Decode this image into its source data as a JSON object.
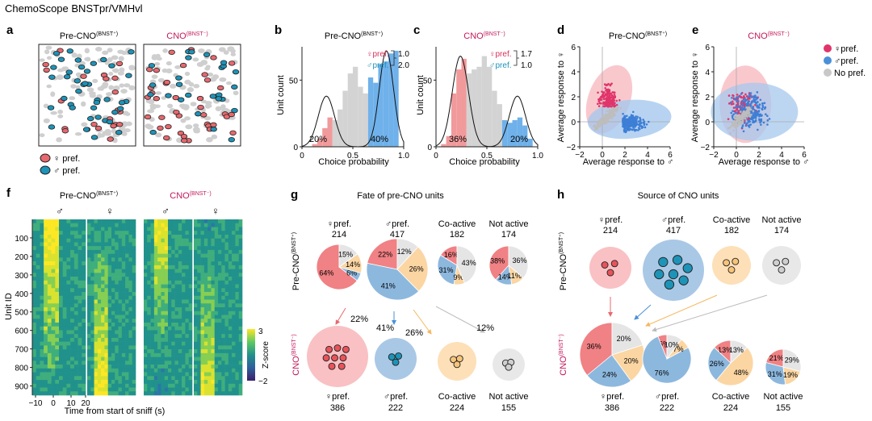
{
  "header": {
    "title": "ChemoScope BNSTpr/VMHvl"
  },
  "colors": {
    "female": "#e8686e",
    "female_dark": "#d8315b",
    "male": "#1d93b8",
    "male_blue": "#4a90d9",
    "gray": "#c8c8c8",
    "coactive": "#f8cf98",
    "notactive": "#e6e6e6",
    "cno_magenta": "#c2185b",
    "light_pink": "#f9c1c4",
    "light_blue": "#a9c8e6"
  },
  "panel_labels": [
    "a",
    "b",
    "c",
    "d",
    "e",
    "f",
    "g",
    "h"
  ],
  "panel_a": {
    "title_pre": "Pre-CNO",
    "title_pre_sup": "(BNST⁺)",
    "title_cno": "CNO",
    "title_cno_sup": "(BNST⁻)",
    "legend": [
      "♀ pref.",
      "♂ pref."
    ]
  },
  "panel_b": {
    "title": "Pre-CNO",
    "title_sup": "(BNST⁺)",
    "legend": [
      {
        "label": "♀pref.",
        "value": "1.0"
      },
      {
        "label": "♂pref.",
        "value": "2.0"
      }
    ],
    "pct_left": "20%",
    "pct_right": "40%"
  },
  "panel_c": {
    "title": "CNO",
    "title_sup": "(BNST⁻)",
    "legend": [
      {
        "label": "♀pref.",
        "value": "1.7"
      },
      {
        "label": "♂pref.",
        "value": "1.0"
      }
    ],
    "pct_left": "36%",
    "pct_right": "20%"
  },
  "chart_data": [
    {
      "id": "b",
      "type": "bar",
      "title": "Pre-CNO(BNST+)",
      "xlabel": "Choice probability",
      "ylabel": "Unit count",
      "xlim": [
        0,
        1
      ],
      "ylim": [
        0,
        75
      ],
      "xticks": [
        "0",
        "0.5",
        "1.0"
      ],
      "yticks": [
        "0",
        "50"
      ],
      "bin_width": 0.05,
      "x": [
        0.025,
        0.075,
        0.125,
        0.175,
        0.225,
        0.275,
        0.325,
        0.375,
        0.425,
        0.475,
        0.525,
        0.575,
        0.625,
        0.675,
        0.725,
        0.775,
        0.825,
        0.875,
        0.925,
        0.975
      ],
      "values": [
        0,
        0,
        2,
        6,
        14,
        22,
        20,
        28,
        42,
        55,
        60,
        45,
        40,
        52,
        48,
        62,
        64,
        70,
        72,
        0
      ],
      "category": [
        "f",
        "f",
        "f",
        "f",
        "f",
        "f",
        "n",
        "n",
        "n",
        "n",
        "n",
        "n",
        "n",
        "m",
        "m",
        "m",
        "m",
        "m",
        "m",
        "m"
      ]
    },
    {
      "id": "c",
      "type": "bar",
      "title": "CNO(BNST−)",
      "xlabel": "Choice probability",
      "ylabel": "Unit count",
      "xlim": [
        0,
        1
      ],
      "ylim": [
        0,
        75
      ],
      "xticks": [
        "0",
        "0.5",
        "1.0"
      ],
      "yticks": [
        "0",
        "50"
      ],
      "bin_width": 0.05,
      "x": [
        0.025,
        0.075,
        0.125,
        0.175,
        0.225,
        0.275,
        0.325,
        0.375,
        0.425,
        0.475,
        0.525,
        0.575,
        0.625,
        0.675,
        0.725,
        0.775,
        0.825,
        0.875,
        0.925,
        0.975
      ],
      "values": [
        0,
        2,
        8,
        40,
        58,
        66,
        55,
        58,
        60,
        68,
        60,
        42,
        32,
        20,
        18,
        20,
        22,
        16,
        6,
        0
      ],
      "category": [
        "f",
        "f",
        "f",
        "f",
        "f",
        "f",
        "n",
        "n",
        "n",
        "n",
        "n",
        "n",
        "n",
        "m",
        "m",
        "m",
        "m",
        "m",
        "m",
        "m"
      ]
    },
    {
      "id": "d",
      "type": "scatter",
      "title": "Pre-CNO(BNST+)",
      "xlabel": "Average response to ♂",
      "ylabel": "Average response to ♀",
      "xlim": [
        -2,
        6
      ],
      "ylim": [
        -2,
        6
      ],
      "xticks": [
        "−2",
        "0",
        "2",
        "4",
        "6"
      ],
      "yticks": [
        "−2",
        "0",
        "2",
        "4",
        "6"
      ]
    },
    {
      "id": "e",
      "type": "scatter",
      "title": "CNO(BNST−)",
      "xlabel": "Average response to ♂",
      "ylabel": "Average response to ♀",
      "xlim": [
        -2,
        6
      ],
      "ylim": [
        -2,
        6
      ],
      "xticks": [
        "−2",
        "0",
        "2",
        "4",
        "6"
      ],
      "yticks": [
        "−2",
        "0",
        "2",
        "4",
        "6"
      ],
      "legend": [
        "♀pref.",
        "♂pref.",
        "No pref."
      ]
    },
    {
      "id": "f",
      "type": "heatmap",
      "xlabel": "Time from start of sniff (s)",
      "ylabel": "Unit ID",
      "xticks": [
        "−10",
        "0",
        "10",
        "20"
      ],
      "yticks": [
        "100",
        "200",
        "300",
        "400",
        "500",
        "600",
        "700",
        "800",
        "900"
      ],
      "colorbar_label": "Z-score",
      "colorbar_ticks": [
        "3",
        "−2"
      ]
    },
    {
      "id": "g",
      "type": "pie",
      "groups": [
        {
          "label": "♀pref.",
          "n": "214",
          "slices": [
            {
              "cat": "f",
              "v": 64
            },
            {
              "cat": "m",
              "v": 6
            },
            {
              "cat": "c",
              "v": 14
            },
            {
              "cat": "n",
              "v": 15
            }
          ],
          "labels": [
            "64%",
            "6%",
            "14%",
            "15%"
          ]
        },
        {
          "label": "♂pref.",
          "n": "417",
          "slices": [
            {
              "cat": "f",
              "v": 22
            },
            {
              "cat": "m",
              "v": 41
            },
            {
              "cat": "c",
              "v": 26
            },
            {
              "cat": "n",
              "v": 12
            }
          ],
          "labels": [
            "22%",
            "41%",
            "26%",
            "12%"
          ]
        },
        {
          "label": "Co-active",
          "n": "182",
          "slices": [
            {
              "cat": "f",
              "v": 16
            },
            {
              "cat": "m",
              "v": 31
            },
            {
              "cat": "c",
              "v": 9
            },
            {
              "cat": "n",
              "v": 43
            }
          ],
          "labels": [
            "16%",
            "31%",
            "9%",
            "43%"
          ]
        },
        {
          "label": "Not active",
          "n": "174",
          "slices": [
            {
              "cat": "f",
              "v": 38
            },
            {
              "cat": "m",
              "v": 14
            },
            {
              "cat": "c",
              "v": 11
            },
            {
              "cat": "n",
              "v": 36
            }
          ],
          "labels": [
            "38%",
            "14%",
            "11%",
            "36%"
          ]
        }
      ]
    },
    {
      "id": "h",
      "type": "pie",
      "groups": [
        {
          "label": "♀pref.",
          "n": "386",
          "slices": [
            {
              "cat": "f",
              "v": 36
            },
            {
              "cat": "m",
              "v": 24
            },
            {
              "cat": "c",
              "v": 20
            },
            {
              "cat": "n",
              "v": 20
            }
          ],
          "labels": [
            "36%",
            "24%",
            "20%",
            "20%"
          ]
        },
        {
          "label": "♂pref.",
          "n": "222",
          "slices": [
            {
              "cat": "f",
              "v": 6
            },
            {
              "cat": "m",
              "v": 76
            },
            {
              "cat": "c",
              "v": 7
            },
            {
              "cat": "n",
              "v": 10
            }
          ],
          "labels": [
            "6%",
            "76%",
            "7%",
            "10%"
          ]
        },
        {
          "label": "Co-active",
          "n": "224",
          "slices": [
            {
              "cat": "f",
              "v": 13
            },
            {
              "cat": "m",
              "v": 26
            },
            {
              "cat": "c",
              "v": 48
            },
            {
              "cat": "n",
              "v": 13
            }
          ],
          "labels": [
            "13%",
            "26%",
            "48%",
            "13%"
          ]
        },
        {
          "label": "Not active",
          "n": "155",
          "slices": [
            {
              "cat": "f",
              "v": 21
            },
            {
              "cat": "m",
              "v": 31
            },
            {
              "cat": "c",
              "v": 19
            },
            {
              "cat": "n",
              "v": 29
            }
          ],
          "labels": [
            "21%",
            "31%",
            "19%",
            "29%"
          ]
        }
      ]
    }
  ],
  "panel_f": {
    "title_pre": "Pre-CNO",
    "title_pre_sup": "(BNST⁺)",
    "title_cno": "CNO",
    "title_cno_sup": "(BNST⁻)",
    "col_symbols": [
      "♂",
      "♀",
      "♂",
      "♀"
    ]
  },
  "panel_g": {
    "title": "Fate of pre-CNO units",
    "row_label_top": "Pre-CNO",
    "row_label_top_sup": "(BNST⁺)",
    "row_label_bottom": "CNO",
    "row_label_bottom_sup": "(BNST⁻)",
    "arrow_pcts": [
      "22%",
      "41%",
      "26%",
      "12%"
    ],
    "bottom": [
      {
        "label": "♀pref.",
        "n": "386"
      },
      {
        "label": "♂pref.",
        "n": "222"
      },
      {
        "label": "Co-active",
        "n": "224"
      },
      {
        "label": "Not active",
        "n": "155"
      }
    ]
  },
  "panel_h": {
    "title": "Source of CNO units",
    "row_label_top": "Pre-CNO",
    "row_label_top_sup": "(BNST⁺)",
    "row_label_bottom": "CNO",
    "row_label_bottom_sup": "(BNST⁻)",
    "top": [
      {
        "label": "♀pref.",
        "n": "214"
      },
      {
        "label": "♂pref.",
        "n": "417"
      },
      {
        "label": "Co-active",
        "n": "182"
      },
      {
        "label": "Not active",
        "n": "174"
      }
    ]
  }
}
